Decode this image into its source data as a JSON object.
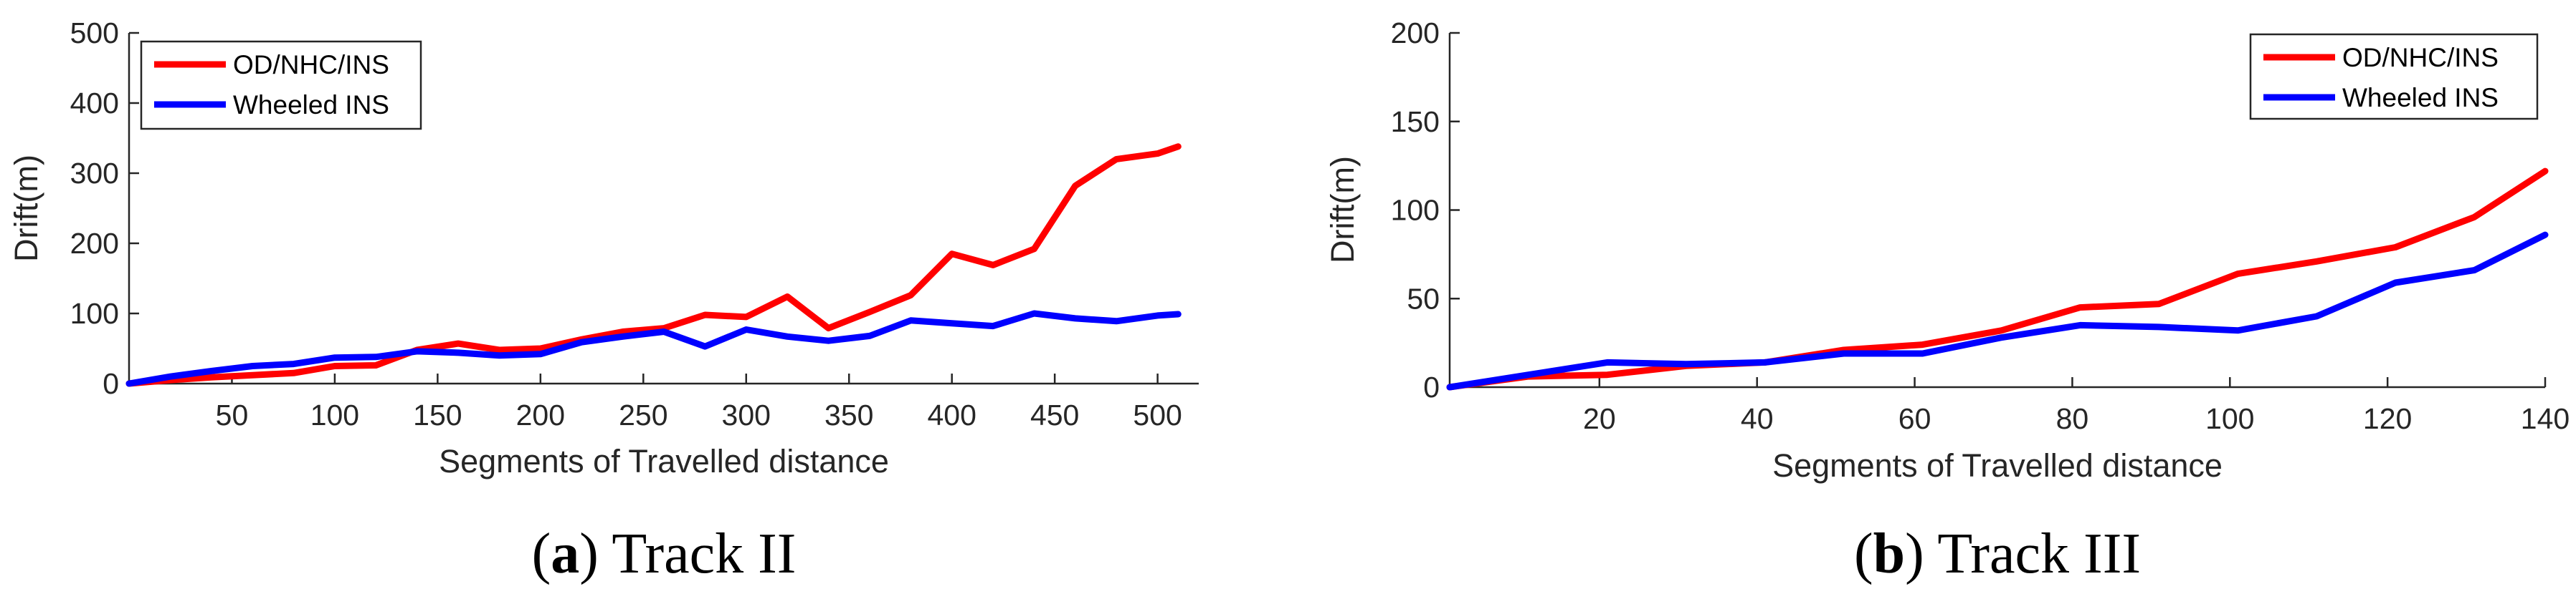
{
  "chart_data": [
    {
      "type": "line",
      "caption": {
        "letter": "a",
        "text": "Track II"
      },
      "xlabel": "Segments of Travelled distance",
      "ylabel": "Drift(m)",
      "xlim": [
        0,
        520
      ],
      "ylim": [
        0,
        500
      ],
      "xticks": [
        50,
        100,
        150,
        200,
        250,
        300,
        350,
        400,
        450,
        500
      ],
      "yticks": [
        0,
        100,
        200,
        300,
        400,
        500
      ],
      "legend_position": "top-left",
      "grid": false,
      "series": [
        {
          "name": "OD/NHC/INS",
          "color": "#ff0000",
          "x": [
            0,
            20,
            40,
            60,
            80,
            100,
            120,
            140,
            160,
            180,
            200,
            220,
            240,
            260,
            280,
            300,
            320,
            340,
            360,
            380,
            400,
            420,
            440,
            460,
            480,
            500,
            510
          ],
          "y": [
            0,
            5,
            9,
            12,
            15,
            25,
            26,
            48,
            57,
            48,
            50,
            63,
            74,
            79,
            98,
            95,
            124,
            79,
            102,
            126,
            185,
            169,
            192,
            282,
            320,
            328,
            338
          ]
        },
        {
          "name": "Wheeled INS",
          "color": "#0000ff",
          "x": [
            0,
            20,
            40,
            60,
            80,
            100,
            120,
            140,
            160,
            180,
            200,
            220,
            240,
            260,
            280,
            300,
            320,
            340,
            360,
            380,
            400,
            420,
            440,
            460,
            480,
            500,
            510
          ],
          "y": [
            0,
            10,
            18,
            25,
            28,
            37,
            38,
            46,
            44,
            40,
            42,
            59,
            67,
            74,
            53,
            77,
            67,
            61,
            68,
            90,
            86,
            82,
            100,
            93,
            89,
            97,
            99
          ]
        }
      ]
    },
    {
      "type": "line",
      "caption": {
        "letter": "b",
        "text": "Track III"
      },
      "xlabel": "Segments of Travelled distance",
      "ylabel": "Drift(m)",
      "xlim": [
        1,
        140
      ],
      "ylim": [
        0,
        200
      ],
      "xticks": [
        20,
        40,
        60,
        80,
        100,
        120,
        140
      ],
      "yticks": [
        0,
        50,
        100,
        150,
        200
      ],
      "legend_position": "top-right",
      "grid": false,
      "series": [
        {
          "name": "OD/NHC/INS",
          "color": "#ff0000",
          "x": [
            1,
            11,
            21,
            31,
            41,
            51,
            61,
            71,
            81,
            91,
            101,
            111,
            121,
            131,
            140
          ],
          "y": [
            0,
            6,
            7,
            12,
            14,
            21,
            24,
            32,
            45,
            47,
            64,
            71,
            79,
            96,
            122
          ]
        },
        {
          "name": "Wheeled INS",
          "color": "#0000ff",
          "x": [
            1,
            11,
            21,
            31,
            41,
            51,
            61,
            71,
            81,
            91,
            101,
            111,
            121,
            131,
            140
          ],
          "y": [
            0,
            7,
            14,
            13,
            14,
            19,
            19,
            28,
            35,
            34,
            32,
            40,
            59,
            66,
            86
          ]
        }
      ]
    }
  ]
}
